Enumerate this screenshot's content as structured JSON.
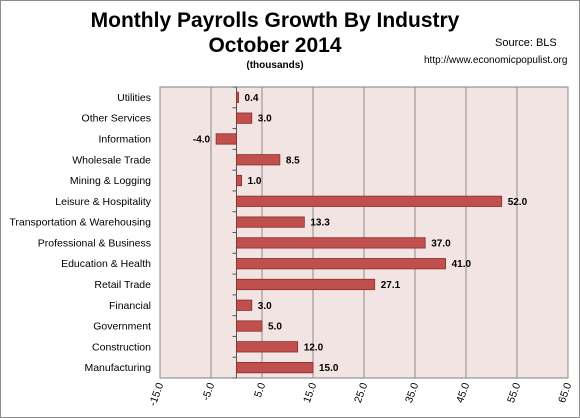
{
  "chart_data": {
    "type": "bar",
    "orientation": "horizontal",
    "title": "Monthly Payrolls Growth By Industry",
    "title_line2": "October 2014",
    "subtitle": "(thousands)",
    "source": "Source:  BLS",
    "url": "http://www.economicpopulist.org",
    "categories": [
      "Utilities",
      "Other Services",
      "Information",
      "Wholesale Trade",
      "Mining & Logging",
      "Leisure & Hospitality",
      "Transportation & Warehousing",
      "Professional & Business",
      "Education & Health",
      "Retail Trade",
      "Financial",
      "Government",
      "Construction",
      "Manufacturing"
    ],
    "values": [
      0.4,
      3.0,
      -4.0,
      8.5,
      1.0,
      52.0,
      13.3,
      37.0,
      41.0,
      27.1,
      3.0,
      5.0,
      12.0,
      15.0
    ],
    "value_labels": [
      "0.4",
      "3.0",
      "-4.0",
      "8.5",
      "1.0",
      "52.0",
      "13.3",
      "37.0",
      "41.0",
      "27.1",
      "3.0",
      "5.0",
      "12.0",
      "15.0"
    ],
    "xlim": [
      -15,
      65
    ],
    "x_ticks": [
      -15,
      -5,
      5,
      15,
      25,
      35,
      45,
      55,
      65
    ],
    "x_tick_labels": [
      "-15.0",
      "-5.0",
      "5.0",
      "15.0",
      "25.0",
      "35.0",
      "45.0",
      "55.0",
      "65.0"
    ],
    "grid": true,
    "colors": {
      "bar_fill": "#c0504d",
      "bar_stroke": "#8b2d2b",
      "plot_background": "#f2e4e2",
      "gridline": "#8c8c8c"
    }
  }
}
